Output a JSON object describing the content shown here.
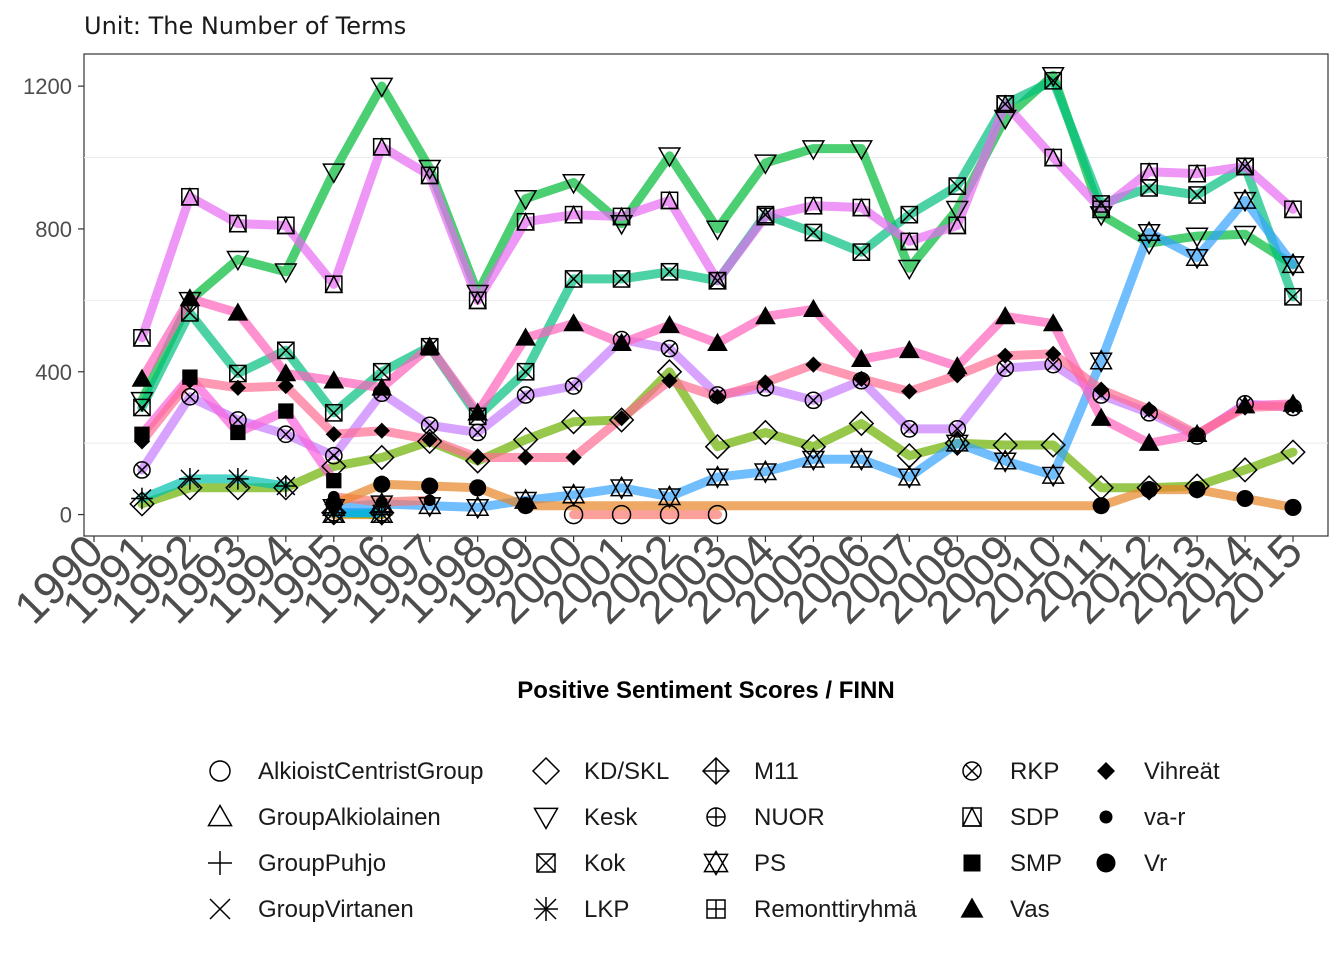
{
  "chart_data": {
    "type": "line",
    "subtitle": "Unit: The Number of Terms",
    "xlabel": "Positive Sentiment Scores / FINN",
    "ylabel": "",
    "xlim": [
      1990,
      2015
    ],
    "ylim": [
      -60,
      1290
    ],
    "x_ticks": [
      1990,
      1991,
      1992,
      1993,
      1994,
      1995,
      1996,
      1997,
      1998,
      1999,
      2000,
      2001,
      2002,
      2003,
      2004,
      2005,
      2006,
      2007,
      2008,
      2009,
      2010,
      2011,
      2012,
      2013,
      2014,
      2015
    ],
    "y_ticks": [
      0,
      400,
      800,
      1200
    ],
    "grid": true,
    "legend_position": "bottom",
    "series": [
      {
        "name": "AlkioistCentristGroup",
        "color": "#F8766D",
        "shape": "circle-open",
        "points": [
          [
            2000,
            0
          ],
          [
            2001,
            0
          ],
          [
            2002,
            0
          ],
          [
            2003,
            0
          ]
        ]
      },
      {
        "name": "GroupAlkiolainen",
        "color": "#E58700",
        "shape": "triangle-open",
        "points": [
          [
            1995,
            0
          ],
          [
            1996,
            0
          ]
        ]
      },
      {
        "name": "GroupPuhjo",
        "color": "#C99800",
        "shape": "plus",
        "points": [
          [
            1995,
            5
          ],
          [
            1996,
            0
          ]
        ]
      },
      {
        "name": "GroupVirtanen",
        "color": "#A3A500",
        "shape": "cross",
        "points": [
          [
            1995,
            5
          ],
          [
            1996,
            2
          ]
        ]
      },
      {
        "name": "KD/SKL",
        "color": "#6BB100",
        "shape": "diamond-open",
        "points": [
          [
            1991,
            30
          ],
          [
            1992,
            75
          ],
          [
            1993,
            75
          ],
          [
            1994,
            75
          ],
          [
            1995,
            135
          ],
          [
            1996,
            160
          ],
          [
            1997,
            205
          ],
          [
            1998,
            150
          ],
          [
            1999,
            210
          ],
          [
            2000,
            260
          ],
          [
            2001,
            265
          ],
          [
            2002,
            400
          ],
          [
            2003,
            190
          ],
          [
            2004,
            230
          ],
          [
            2005,
            190
          ],
          [
            2006,
            255
          ],
          [
            2007,
            165
          ],
          [
            2008,
            200
          ],
          [
            2009,
            195
          ],
          [
            2010,
            195
          ],
          [
            2011,
            75
          ],
          [
            2012,
            75
          ],
          [
            2013,
            80
          ],
          [
            2014,
            125
          ],
          [
            2015,
            175
          ]
        ]
      },
      {
        "name": "Kesk",
        "color": "#00BA38",
        "shape": "triangle-down-open",
        "points": [
          [
            1991,
            320
          ],
          [
            1992,
            600
          ],
          [
            1993,
            715
          ],
          [
            1994,
            680
          ],
          [
            1995,
            960
          ],
          [
            1996,
            1200
          ],
          [
            1997,
            970
          ],
          [
            1998,
            620
          ],
          [
            1999,
            885
          ],
          [
            2000,
            930
          ],
          [
            2001,
            815
          ],
          [
            2002,
            1005
          ],
          [
            2003,
            800
          ],
          [
            2004,
            985
          ],
          [
            2005,
            1025
          ],
          [
            2006,
            1025
          ],
          [
            2007,
            690
          ],
          [
            2008,
            855
          ],
          [
            2009,
            1110
          ],
          [
            2010,
            1230
          ],
          [
            2011,
            840
          ],
          [
            2012,
            760
          ],
          [
            2013,
            780
          ],
          [
            2014,
            785
          ],
          [
            2015,
            700
          ]
        ]
      },
      {
        "name": "Kok",
        "color": "#00BF7D",
        "shape": "square-cross",
        "points": [
          [
            1991,
            300
          ],
          [
            1992,
            565
          ],
          [
            1993,
            395
          ],
          [
            1994,
            460
          ],
          [
            1995,
            285
          ],
          [
            1996,
            400
          ],
          [
            1997,
            470
          ],
          [
            1998,
            275
          ],
          [
            1999,
            400
          ],
          [
            2000,
            660
          ],
          [
            2001,
            660
          ],
          [
            2002,
            680
          ],
          [
            2003,
            655
          ],
          [
            2004,
            840
          ],
          [
            2005,
            790
          ],
          [
            2006,
            735
          ],
          [
            2007,
            840
          ],
          [
            2008,
            920
          ],
          [
            2009,
            1150
          ],
          [
            2010,
            1215
          ],
          [
            2011,
            870
          ],
          [
            2012,
            915
          ],
          [
            2013,
            895
          ],
          [
            2014,
            975
          ],
          [
            2015,
            610
          ]
        ]
      },
      {
        "name": "LKP",
        "color": "#00C0AF",
        "shape": "asterisk",
        "points": [
          [
            1991,
            45
          ],
          [
            1992,
            100
          ],
          [
            1993,
            100
          ],
          [
            1994,
            80
          ]
        ]
      },
      {
        "name": "M11",
        "color": "#00BCD8",
        "shape": "diamond-plus",
        "points": [
          [
            1995,
            5
          ],
          [
            1996,
            5
          ]
        ]
      },
      {
        "name": "NUOR",
        "color": "#00B0F6",
        "shape": "circle-plus",
        "points": [
          [
            1995,
            5
          ],
          [
            1996,
            5
          ]
        ]
      },
      {
        "name": "PS",
        "color": "#35A2FF",
        "shape": "star-of-david",
        "points": [
          [
            1995,
            20
          ],
          [
            1996,
            30
          ],
          [
            1997,
            25
          ],
          [
            1998,
            20
          ],
          [
            1999,
            40
          ],
          [
            2000,
            55
          ],
          [
            2001,
            75
          ],
          [
            2002,
            50
          ],
          [
            2003,
            105
          ],
          [
            2004,
            120
          ],
          [
            2005,
            155
          ],
          [
            2006,
            155
          ],
          [
            2007,
            105
          ],
          [
            2008,
            200
          ],
          [
            2009,
            150
          ],
          [
            2010,
            110
          ],
          [
            2011,
            430
          ],
          [
            2012,
            790
          ],
          [
            2013,
            720
          ],
          [
            2014,
            880
          ],
          [
            2015,
            700
          ]
        ]
      },
      {
        "name": "Remonttiryhmä",
        "color": "#9590FF",
        "shape": "square-plus",
        "points": []
      },
      {
        "name": "RKP",
        "color": "#C77CFF",
        "shape": "circle-cross",
        "points": [
          [
            1991,
            125
          ],
          [
            1992,
            330
          ],
          [
            1993,
            265
          ],
          [
            1994,
            225
          ],
          [
            1995,
            165
          ],
          [
            1996,
            340
          ],
          [
            1997,
            250
          ],
          [
            1998,
            230
          ],
          [
            1999,
            335
          ],
          [
            2000,
            360
          ],
          [
            2001,
            490
          ],
          [
            2002,
            465
          ],
          [
            2003,
            335
          ],
          [
            2004,
            355
          ],
          [
            2005,
            320
          ],
          [
            2006,
            375
          ],
          [
            2007,
            240
          ],
          [
            2008,
            240
          ],
          [
            2009,
            410
          ],
          [
            2010,
            420
          ],
          [
            2011,
            335
          ],
          [
            2012,
            285
          ],
          [
            2013,
            220
          ],
          [
            2014,
            310
          ],
          [
            2015,
            300
          ]
        ]
      },
      {
        "name": "SDP",
        "color": "#E76BF3",
        "shape": "square-triangle",
        "points": [
          [
            1991,
            495
          ],
          [
            1992,
            890
          ],
          [
            1993,
            815
          ],
          [
            1994,
            810
          ],
          [
            1995,
            645
          ],
          [
            1996,
            1030
          ],
          [
            1997,
            950
          ],
          [
            1998,
            600
          ],
          [
            1999,
            820
          ],
          [
            2000,
            840
          ],
          [
            2001,
            835
          ],
          [
            2002,
            880
          ],
          [
            2003,
            655
          ],
          [
            2004,
            835
          ],
          [
            2005,
            865
          ],
          [
            2006,
            860
          ],
          [
            2007,
            765
          ],
          [
            2008,
            810
          ],
          [
            2009,
            1150
          ],
          [
            2010,
            1000
          ],
          [
            2011,
            855
          ],
          [
            2012,
            960
          ],
          [
            2013,
            955
          ],
          [
            2014,
            975
          ],
          [
            2015,
            855
          ]
        ]
      },
      {
        "name": "SMP",
        "color": "#FA62DB",
        "shape": "square-filled",
        "points": [
          [
            1991,
            225
          ],
          [
            1992,
            385
          ],
          [
            1993,
            230
          ],
          [
            1994,
            290
          ],
          [
            1995,
            95
          ]
        ]
      },
      {
        "name": "Vas",
        "color": "#FF62BC",
        "shape": "triangle-filled",
        "points": [
          [
            1991,
            380
          ],
          [
            1992,
            605
          ],
          [
            1993,
            565
          ],
          [
            1994,
            395
          ],
          [
            1995,
            375
          ],
          [
            1996,
            355
          ],
          [
            1997,
            470
          ],
          [
            1998,
            285
          ],
          [
            1999,
            495
          ],
          [
            2000,
            535
          ],
          [
            2001,
            480
          ],
          [
            2002,
            530
          ],
          [
            2003,
            480
          ],
          [
            2004,
            555
          ],
          [
            2005,
            575
          ],
          [
            2006,
            435
          ],
          [
            2007,
            460
          ],
          [
            2008,
            415
          ],
          [
            2009,
            555
          ],
          [
            2010,
            535
          ],
          [
            2011,
            270
          ],
          [
            2012,
            200
          ],
          [
            2013,
            225
          ],
          [
            2014,
            305
          ],
          [
            2015,
            310
          ]
        ]
      },
      {
        "name": "Vihreät",
        "color": "#FF6C91",
        "shape": "diamond-filled",
        "points": [
          [
            1991,
            205
          ],
          [
            1992,
            375
          ],
          [
            1993,
            355
          ],
          [
            1994,
            360
          ],
          [
            1995,
            225
          ],
          [
            1996,
            235
          ],
          [
            1997,
            210
          ],
          [
            1998,
            160
          ],
          [
            1999,
            160
          ],
          [
            2000,
            160
          ],
          [
            2001,
            270
          ],
          [
            2002,
            375
          ],
          [
            2003,
            330
          ],
          [
            2004,
            370
          ],
          [
            2005,
            420
          ],
          [
            2006,
            380
          ],
          [
            2007,
            345
          ],
          [
            2008,
            390
          ],
          [
            2009,
            445
          ],
          [
            2010,
            450
          ],
          [
            2011,
            350
          ],
          [
            2012,
            295
          ],
          [
            2013,
            225
          ],
          [
            2014,
            300
          ],
          [
            2015,
            305
          ]
        ]
      },
      {
        "name": "va-r",
        "color": "#F8766D",
        "shape": "dot-small",
        "points": [
          [
            1995,
            50
          ],
          [
            1996,
            35
          ],
          [
            1997,
            40
          ]
        ]
      },
      {
        "name": "Vr",
        "color": "#E88526",
        "shape": "dot-large",
        "points": [
          [
            1995,
            30
          ],
          [
            1996,
            85
          ],
          [
            1997,
            80
          ],
          [
            1998,
            75
          ],
          [
            1999,
            25
          ],
          [
            2011,
            25
          ],
          [
            2012,
            70
          ],
          [
            2013,
            70
          ],
          [
            2014,
            45
          ],
          [
            2015,
            20
          ]
        ]
      }
    ]
  }
}
